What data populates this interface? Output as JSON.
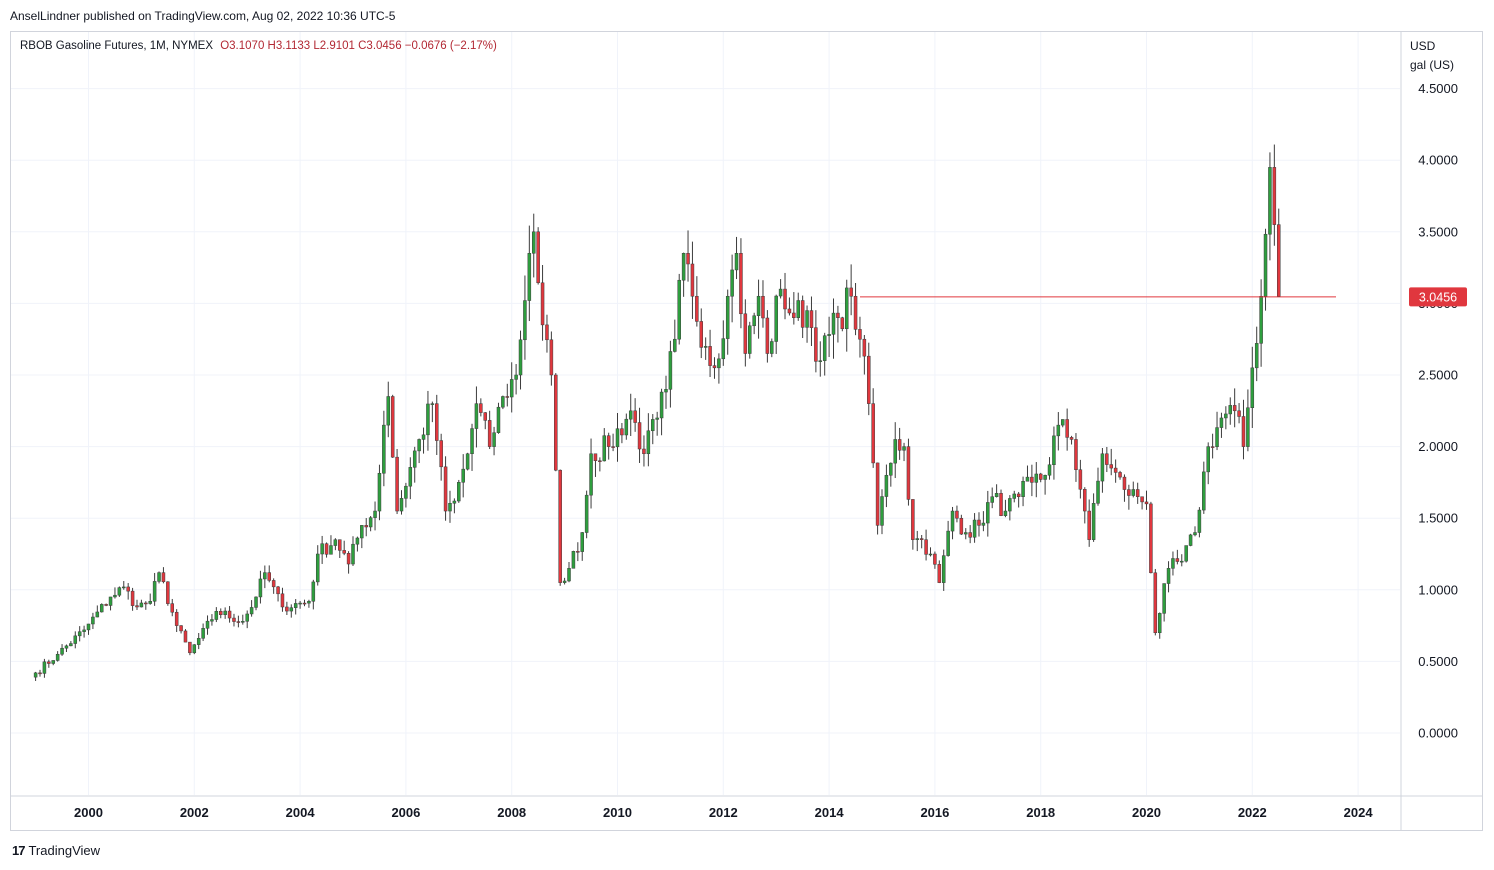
{
  "publisher_line": "AnselLindner published on TradingView.com, Aug 02, 2022 10:36 UTC-5",
  "header": {
    "symbol": "RBOB Gasoline Futures, 1M, NYMEX",
    "ohlc": "O3.1070  H3.1133  L2.9101  C3.0456  −0.0676 (−2.17%)"
  },
  "axis_unit": {
    "line1": "USD",
    "line2": "gal (US)"
  },
  "price_label": "3.0456",
  "footer": {
    "logo": "17",
    "brand": "TradingView"
  },
  "colors": {
    "up": "#26a69a",
    "up_green": "#2e9e3e",
    "down": "#e0373e",
    "last_price": "#e0373e",
    "grid": "#f0f3fa"
  },
  "chart_data": {
    "type": "candlestick",
    "interval": "1M",
    "ylim": [
      -0.5,
      4.5
    ],
    "yticks": [
      "4.5000",
      "4.0000",
      "3.5000",
      "3.0000",
      "2.5000",
      "2.0000",
      "1.5000",
      "1.0000",
      "0.5000",
      "0.0000"
    ],
    "xticks": [
      "2000",
      "2002",
      "2004",
      "2006",
      "2008",
      "2010",
      "2012",
      "2014",
      "2016",
      "2018",
      "2020",
      "2022",
      "2024"
    ],
    "last_close": 3.0456,
    "monthly_close": [
      {
        "date": "1999-01",
        "close": 0.42
      },
      {
        "date": "1999-06",
        "close": 0.55
      },
      {
        "date": "1999-12",
        "close": 0.72
      },
      {
        "date": "2000-06",
        "close": 0.95
      },
      {
        "date": "2000-09",
        "close": 1.02
      },
      {
        "date": "2000-12",
        "close": 0.88
      },
      {
        "date": "2001-03",
        "close": 0.92
      },
      {
        "date": "2001-05",
        "close": 1.12
      },
      {
        "date": "2001-09",
        "close": 0.75
      },
      {
        "date": "2001-12",
        "close": 0.56
      },
      {
        "date": "2002-06",
        "close": 0.85
      },
      {
        "date": "2002-12",
        "close": 0.78
      },
      {
        "date": "2003-03",
        "close": 0.95
      },
      {
        "date": "2003-05",
        "close": 1.12
      },
      {
        "date": "2003-09",
        "close": 0.88
      },
      {
        "date": "2004-03",
        "close": 0.92
      },
      {
        "date": "2004-05",
        "close": 1.25
      },
      {
        "date": "2004-09",
        "close": 1.35
      },
      {
        "date": "2004-12",
        "close": 1.18
      },
      {
        "date": "2005-03",
        "close": 1.45
      },
      {
        "date": "2005-06",
        "close": 1.55
      },
      {
        "date": "2005-08",
        "close": 2.15
      },
      {
        "date": "2005-09",
        "close": 2.35
      },
      {
        "date": "2005-11",
        "close": 1.55
      },
      {
        "date": "2006-04",
        "close": 2.05
      },
      {
        "date": "2006-07",
        "close": 2.3
      },
      {
        "date": "2006-10",
        "close": 1.55
      },
      {
        "date": "2006-12",
        "close": 1.62
      },
      {
        "date": "2007-03",
        "close": 1.95
      },
      {
        "date": "2007-05",
        "close": 2.3
      },
      {
        "date": "2007-08",
        "close": 2.0
      },
      {
        "date": "2007-11",
        "close": 2.35
      },
      {
        "date": "2008-02",
        "close": 2.5
      },
      {
        "date": "2008-05",
        "close": 3.35
      },
      {
        "date": "2008-06",
        "close": 3.5
      },
      {
        "date": "2008-08",
        "close": 2.85
      },
      {
        "date": "2008-10",
        "close": 2.5
      },
      {
        "date": "2008-12",
        "close": 1.05
      },
      {
        "date": "2009-02",
        "close": 1.15
      },
      {
        "date": "2009-05",
        "close": 1.4
      },
      {
        "date": "2009-07",
        "close": 1.95
      },
      {
        "date": "2009-11",
        "close": 2.0
      },
      {
        "date": "2010-04",
        "close": 2.25
      },
      {
        "date": "2010-07",
        "close": 1.95
      },
      {
        "date": "2010-10",
        "close": 2.2
      },
      {
        "date": "2010-12",
        "close": 2.4
      },
      {
        "date": "2011-02",
        "close": 2.75
      },
      {
        "date": "2011-04",
        "close": 3.35
      },
      {
        "date": "2011-06",
        "close": 3.05
      },
      {
        "date": "2011-09",
        "close": 2.7
      },
      {
        "date": "2011-11",
        "close": 2.55
      },
      {
        "date": "2012-02",
        "close": 3.05
      },
      {
        "date": "2012-04",
        "close": 3.35
      },
      {
        "date": "2012-06",
        "close": 2.65
      },
      {
        "date": "2012-09",
        "close": 3.05
      },
      {
        "date": "2012-11",
        "close": 2.65
      },
      {
        "date": "2013-02",
        "close": 3.1
      },
      {
        "date": "2013-05",
        "close": 2.9
      },
      {
        "date": "2013-08",
        "close": 2.95
      },
      {
        "date": "2013-11",
        "close": 2.6
      },
      {
        "date": "2014-03",
        "close": 2.9
      },
      {
        "date": "2014-06",
        "close": 3.05
      },
      {
        "date": "2014-08",
        "close": 2.75
      },
      {
        "date": "2014-10",
        "close": 2.3
      },
      {
        "date": "2014-12",
        "close": 1.45
      },
      {
        "date": "2015-02",
        "close": 1.8
      },
      {
        "date": "2015-04",
        "close": 2.05
      },
      {
        "date": "2015-06",
        "close": 2.0
      },
      {
        "date": "2015-08",
        "close": 1.35
      },
      {
        "date": "2015-10",
        "close": 1.35
      },
      {
        "date": "2015-12",
        "close": 1.25
      },
      {
        "date": "2016-02",
        "close": 1.05
      },
      {
        "date": "2016-05",
        "close": 1.55
      },
      {
        "date": "2016-08",
        "close": 1.4
      },
      {
        "date": "2016-11",
        "close": 1.45
      },
      {
        "date": "2017-02",
        "close": 1.65
      },
      {
        "date": "2017-05",
        "close": 1.55
      },
      {
        "date": "2017-08",
        "close": 1.65
      },
      {
        "date": "2017-11",
        "close": 1.75
      },
      {
        "date": "2018-02",
        "close": 1.8
      },
      {
        "date": "2018-05",
        "close": 2.15
      },
      {
        "date": "2018-08",
        "close": 2.05
      },
      {
        "date": "2018-11",
        "close": 1.55
      },
      {
        "date": "2018-12",
        "close": 1.35
      },
      {
        "date": "2019-03",
        "close": 1.95
      },
      {
        "date": "2019-05",
        "close": 1.85
      },
      {
        "date": "2019-08",
        "close": 1.7
      },
      {
        "date": "2019-11",
        "close": 1.65
      },
      {
        "date": "2020-01",
        "close": 1.6
      },
      {
        "date": "2020-03",
        "close": 0.7
      },
      {
        "date": "2020-06",
        "close": 1.15
      },
      {
        "date": "2020-09",
        "close": 1.2
      },
      {
        "date": "2020-12",
        "close": 1.4
      },
      {
        "date": "2021-03",
        "close": 2.0
      },
      {
        "date": "2021-06",
        "close": 2.2
      },
      {
        "date": "2021-09",
        "close": 2.25
      },
      {
        "date": "2021-11",
        "close": 2.0
      },
      {
        "date": "2022-01",
        "close": 2.55
      },
      {
        "date": "2022-03",
        "close": 3.05
      },
      {
        "date": "2022-05",
        "close": 3.95
      },
      {
        "date": "2022-06",
        "close": 3.55
      },
      {
        "date": "2022-07",
        "close": 3.05
      }
    ]
  }
}
